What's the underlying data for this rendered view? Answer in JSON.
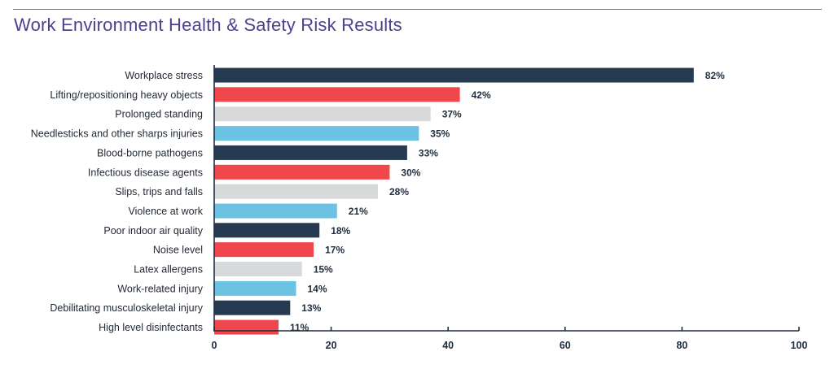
{
  "title": "Work Environment Health & Safety Risk Results",
  "colors": {
    "accent_rule": "#e8475a",
    "title": "#4a4290",
    "navy": "#263a52",
    "red": "#ef474c",
    "grey": "#d8d9da",
    "blue": "#6cc2e3",
    "axis": "#1f2d3d"
  },
  "chart_data": {
    "type": "bar",
    "orientation": "horizontal",
    "title": "Work Environment Health & Safety Risk Results",
    "categories": [
      "Workplace stress",
      "Lifting/repositioning heavy objects",
      "Prolonged standing",
      "Needlesticks and other sharps injuries",
      "Blood-borne pathogens",
      "Infectious disease agents",
      "Slips, trips and falls",
      "Violence at work",
      "Poor indoor air quality",
      "Noise level",
      "Latex allergens",
      "Work-related injury",
      "Debilitating musculoskeletal injury",
      "High level disinfectants"
    ],
    "values": [
      82,
      42,
      37,
      35,
      33,
      30,
      28,
      21,
      18,
      17,
      15,
      14,
      13,
      11
    ],
    "value_labels": [
      "82%",
      "42%",
      "37%",
      "35%",
      "33%",
      "30%",
      "28%",
      "21%",
      "18%",
      "17%",
      "15%",
      "14%",
      "13%",
      "11%"
    ],
    "bar_colors": [
      "#263a52",
      "#ef474c",
      "#d8d9da",
      "#6cc2e3",
      "#263a52",
      "#ef474c",
      "#d8d9da",
      "#6cc2e3",
      "#263a52",
      "#ef474c",
      "#d8d9da",
      "#6cc2e3",
      "#263a52",
      "#ef474c"
    ],
    "xlim": [
      0,
      100
    ],
    "x_ticks": [
      "0",
      "20",
      "40",
      "60",
      "80",
      "100"
    ],
    "x_tick_values": [
      0,
      20,
      40,
      60,
      80,
      100
    ],
    "grid": false,
    "legend": "none"
  }
}
